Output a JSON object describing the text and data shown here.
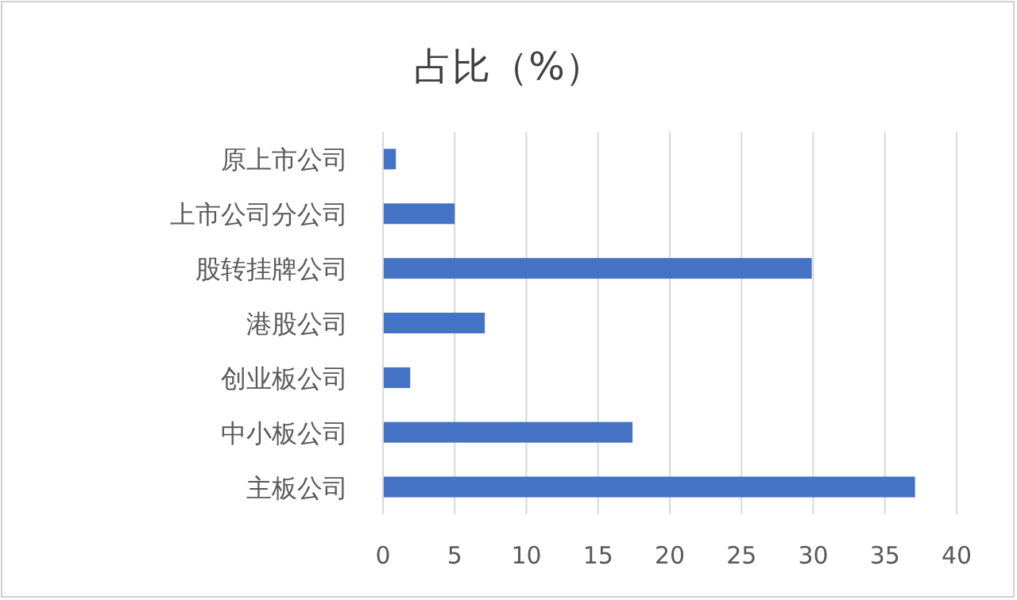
{
  "chart_data": {
    "type": "bar",
    "orientation": "horizontal",
    "title": "占比（%）",
    "categories": [
      "原上市公司",
      "上市公司分公司",
      "股转挂牌公司",
      "港股公司",
      "创业板公司",
      "中小板公司",
      "主板公司"
    ],
    "values": [
      0.9,
      5.0,
      29.9,
      7.1,
      1.9,
      17.4,
      37.1
    ],
    "color": "#4472c4",
    "xlim": [
      0,
      40
    ],
    "xticks": [
      0,
      5,
      10,
      15,
      20,
      25,
      30,
      35,
      40
    ],
    "grid": "x"
  }
}
